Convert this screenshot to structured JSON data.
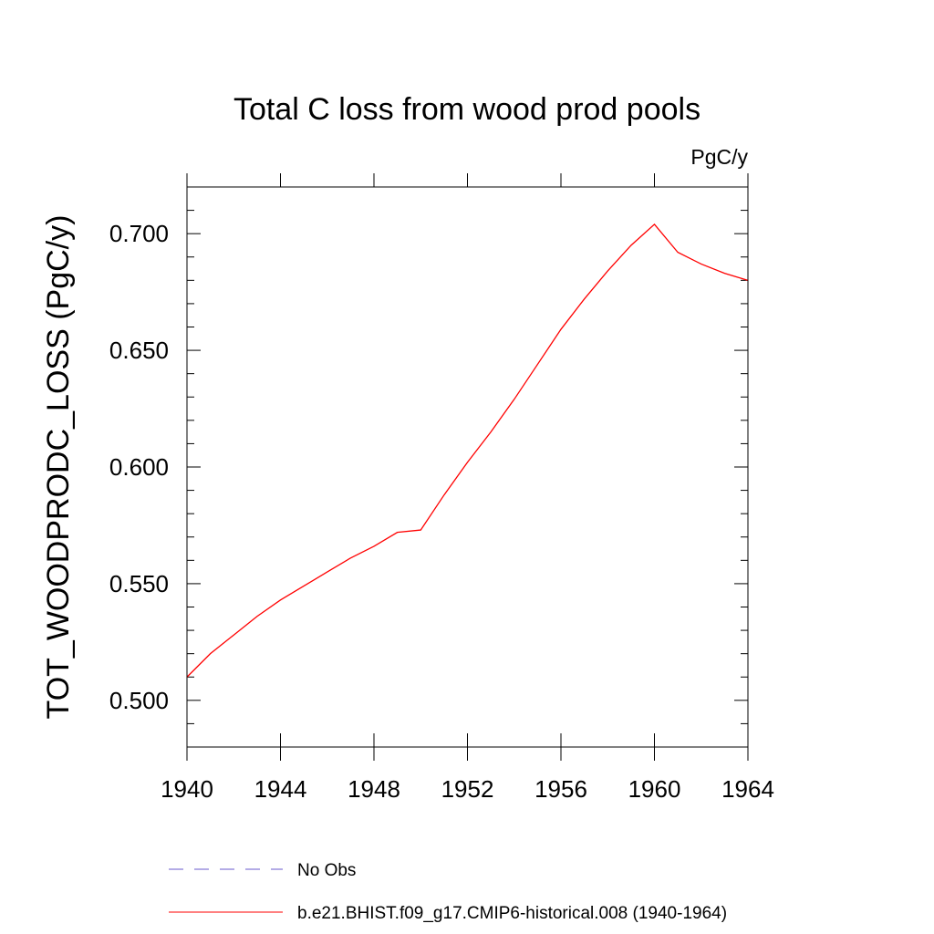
{
  "chart_data": {
    "type": "line",
    "title": "Total C loss from wood prod pools",
    "units_label": "PgC/y",
    "ylabel": "TOT_WOODPRODC_LOSS  (PgC/y)",
    "xlabel": "",
    "xlim": [
      1940,
      1964
    ],
    "ylim": [
      0.48,
      0.72
    ],
    "xticks": [
      1940,
      1944,
      1948,
      1952,
      1956,
      1960,
      1964
    ],
    "xtick_labels": [
      "1940",
      "1944",
      "1948",
      "1952",
      "1956",
      "1960",
      "1964"
    ],
    "yticks": [
      0.5,
      0.55,
      0.6,
      0.65,
      0.7
    ],
    "ytick_labels": [
      "0.500",
      "0.550",
      "0.600",
      "0.650",
      "0.700"
    ],
    "grid": false,
    "colors": {
      "series": "#ff0000",
      "obs": "#6a5acd",
      "axis": "#000000"
    },
    "series": [
      {
        "name": "b.e21.BHIST.f09_g17.CMIP6-historical.008 (1940-1964)",
        "x": [
          1940,
          1941,
          1942,
          1943,
          1944,
          1945,
          1946,
          1947,
          1948,
          1949,
          1950,
          1951,
          1952,
          1953,
          1954,
          1955,
          1956,
          1957,
          1958,
          1959,
          1960,
          1961,
          1962,
          1963,
          1964
        ],
        "y": [
          0.51,
          0.52,
          0.528,
          0.536,
          0.543,
          0.549,
          0.555,
          0.561,
          0.566,
          0.572,
          0.573,
          0.588,
          0.602,
          0.615,
          0.629,
          0.644,
          0.659,
          0.672,
          0.684,
          0.695,
          0.704,
          0.692,
          0.687,
          0.683,
          0.68
        ]
      }
    ],
    "legend": {
      "placement": "bottom",
      "entries": [
        {
          "label": "No Obs",
          "style": "dashed"
        },
        {
          "label": "b.e21.BHIST.f09_g17.CMIP6-historical.008 (1940-1964)",
          "style": "solid"
        }
      ]
    }
  }
}
